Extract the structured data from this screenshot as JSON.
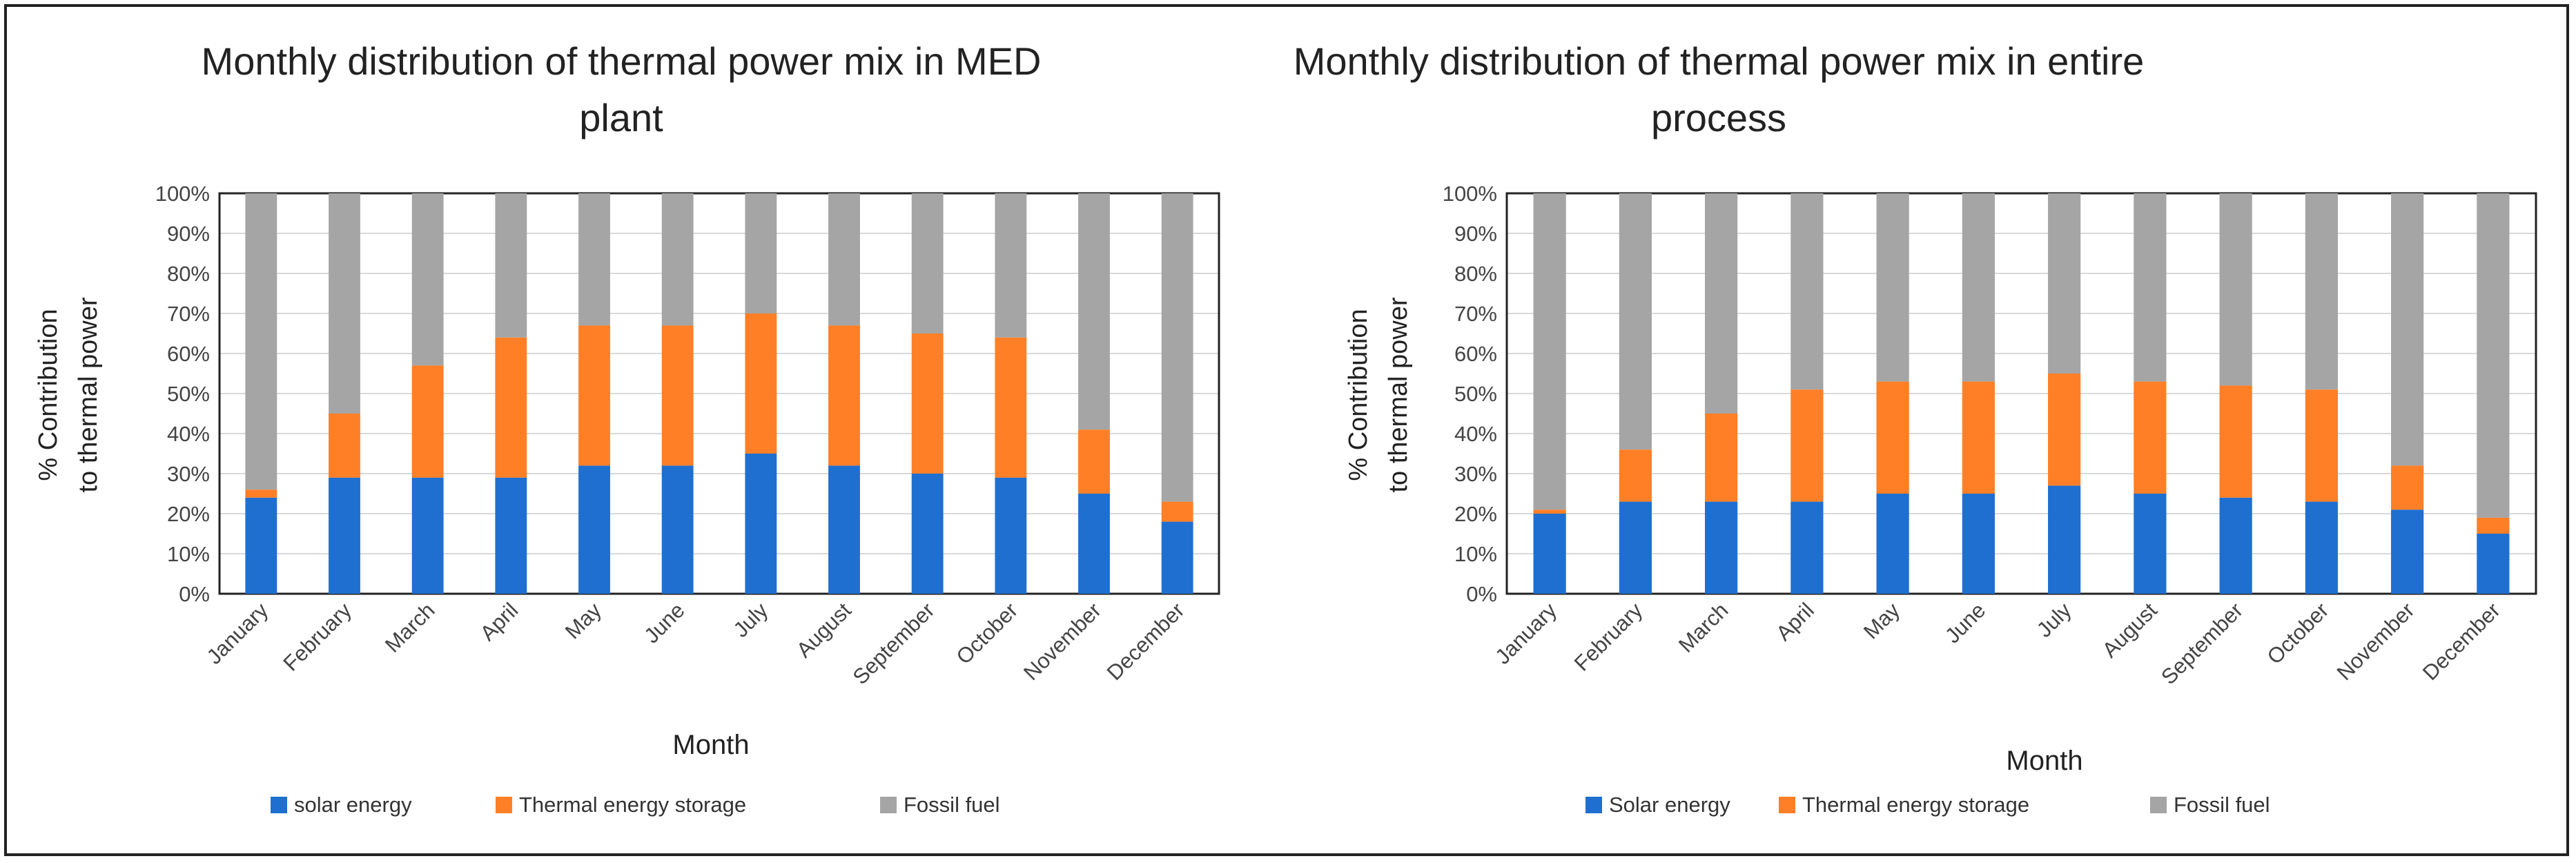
{
  "chart_data": [
    {
      "type": "bar",
      "stacked": true,
      "title": "Monthly distribution of thermal power mix in MED plant",
      "title_lines": [
        "Monthly distribution of thermal power mix in MED",
        "plant"
      ],
      "xlabel": "Month",
      "ylabel": "% Contribution to thermal power",
      "ylabel_lines": [
        "% Contribution",
        "to thermal power"
      ],
      "ylim": [
        0,
        100
      ],
      "yticks": [
        "0%",
        "10%",
        "20%",
        "30%",
        "40%",
        "50%",
        "60%",
        "70%",
        "80%",
        "90%",
        "100%"
      ],
      "categories": [
        "January",
        "February",
        "March",
        "April",
        "May",
        "June",
        "July",
        "August",
        "September",
        "October",
        "November",
        "December"
      ],
      "series": [
        {
          "name": "solar energy",
          "color": "#1F6FD0",
          "values": [
            24,
            29,
            29,
            29,
            32,
            32,
            35,
            32,
            30,
            29,
            25,
            18
          ]
        },
        {
          "name": "Thermal energy storage",
          "color": "#FF7F27",
          "values": [
            2,
            16,
            28,
            35,
            35,
            35,
            35,
            35,
            35,
            35,
            16,
            5
          ]
        },
        {
          "name": "Fossil fuel",
          "color": "#A5A5A5",
          "values": [
            74,
            55,
            43,
            36,
            33,
            33,
            30,
            33,
            35,
            36,
            59,
            77
          ]
        }
      ],
      "legend_position": "bottom"
    },
    {
      "type": "bar",
      "stacked": true,
      "title": "Monthly distribution of thermal power mix in entire process",
      "title_lines": [
        "Monthly distribution of thermal power mix in entire",
        "process"
      ],
      "xlabel": "Month",
      "ylabel": "% Contribution to thermal power",
      "ylabel_lines": [
        "% Contribution",
        "to thermal power"
      ],
      "ylim": [
        0,
        100
      ],
      "yticks": [
        "0%",
        "10%",
        "20%",
        "30%",
        "40%",
        "50%",
        "60%",
        "70%",
        "80%",
        "90%",
        "100%"
      ],
      "categories": [
        "January",
        "February",
        "March",
        "April",
        "May",
        "June",
        "July",
        "August",
        "September",
        "October",
        "November",
        "December"
      ],
      "series": [
        {
          "name": "Solar energy",
          "color": "#1F6FD0",
          "values": [
            20,
            23,
            23,
            23,
            25,
            25,
            27,
            25,
            24,
            23,
            21,
            15
          ]
        },
        {
          "name": "Thermal energy storage",
          "color": "#FF7F27",
          "values": [
            1,
            13,
            22,
            28,
            28,
            28,
            28,
            28,
            28,
            28,
            11,
            4
          ]
        },
        {
          "name": "Fossil fuel",
          "color": "#A5A5A5",
          "values": [
            79,
            64,
            55,
            49,
            47,
            47,
            45,
            47,
            48,
            49,
            68,
            81
          ]
        }
      ],
      "legend_position": "bottom"
    }
  ]
}
